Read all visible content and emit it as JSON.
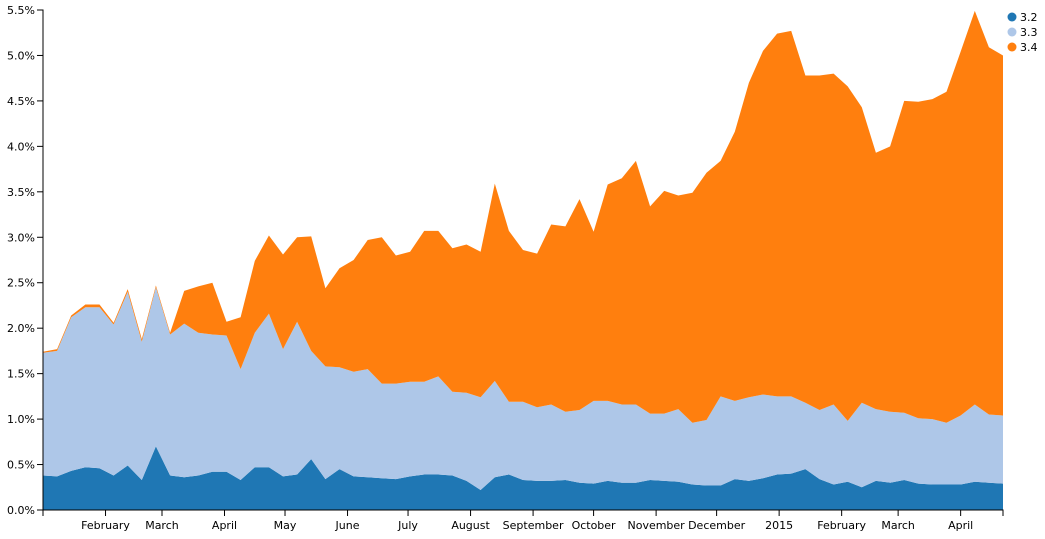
{
  "chart_data": {
    "type": "area",
    "stacked": true,
    "x_axis": {
      "type": "date",
      "domain": [
        "2014-01-01",
        "2015-04-22"
      ],
      "ticks": [
        {
          "date": "2014-02-01",
          "label": "February"
        },
        {
          "date": "2014-03-01",
          "label": "March"
        },
        {
          "date": "2014-04-01",
          "label": "April"
        },
        {
          "date": "2014-05-01",
          "label": "May"
        },
        {
          "date": "2014-06-01",
          "label": "June"
        },
        {
          "date": "2014-07-01",
          "label": "July"
        },
        {
          "date": "2014-08-01",
          "label": "August"
        },
        {
          "date": "2014-09-01",
          "label": "September"
        },
        {
          "date": "2014-10-01",
          "label": "October"
        },
        {
          "date": "2014-11-01",
          "label": "November"
        },
        {
          "date": "2014-12-01",
          "label": "December"
        },
        {
          "date": "2015-01-01",
          "label": "2015"
        },
        {
          "date": "2015-02-01",
          "label": "February"
        },
        {
          "date": "2015-03-01",
          "label": "March"
        },
        {
          "date": "2015-04-01",
          "label": "April"
        }
      ]
    },
    "y_axis": {
      "domain": [
        0,
        5.5
      ],
      "ticks": [
        {
          "value": 0,
          "label": "0.0%"
        },
        {
          "value": 0.5,
          "label": "0.5%"
        },
        {
          "value": 1,
          "label": "1.0%"
        },
        {
          "value": 1.5,
          "label": "1.5%"
        },
        {
          "value": 2,
          "label": "2.0%"
        },
        {
          "value": 2.5,
          "label": "2.5%"
        },
        {
          "value": 3,
          "label": "3.0%"
        },
        {
          "value": 3.5,
          "label": "3.5%"
        },
        {
          "value": 4,
          "label": "4.0%"
        },
        {
          "value": 4.5,
          "label": "4.5%"
        },
        {
          "value": 5,
          "label": "5.0%"
        },
        {
          "value": 5.5,
          "label": "5.5%"
        }
      ]
    },
    "legend_position": "top-right",
    "grid": false,
    "x": [
      "2014-01-01",
      "2014-01-08",
      "2014-01-15",
      "2014-01-22",
      "2014-01-29",
      "2014-02-05",
      "2014-02-12",
      "2014-02-19",
      "2014-02-26",
      "2014-03-05",
      "2014-03-12",
      "2014-03-19",
      "2014-03-26",
      "2014-04-02",
      "2014-04-09",
      "2014-04-16",
      "2014-04-23",
      "2014-04-30",
      "2014-05-07",
      "2014-05-14",
      "2014-05-21",
      "2014-05-28",
      "2014-06-04",
      "2014-06-11",
      "2014-06-18",
      "2014-06-25",
      "2014-07-02",
      "2014-07-09",
      "2014-07-16",
      "2014-07-23",
      "2014-07-30",
      "2014-08-06",
      "2014-08-13",
      "2014-08-20",
      "2014-08-27",
      "2014-09-03",
      "2014-09-10",
      "2014-09-17",
      "2014-09-24",
      "2014-10-01",
      "2014-10-08",
      "2014-10-15",
      "2014-10-22",
      "2014-10-29",
      "2014-11-05",
      "2014-11-12",
      "2014-11-19",
      "2014-11-26",
      "2014-12-03",
      "2014-12-10",
      "2014-12-17",
      "2014-12-24",
      "2014-12-31",
      "2015-01-07",
      "2015-01-14",
      "2015-01-21",
      "2015-01-28",
      "2015-02-04",
      "2015-02-11",
      "2015-02-18",
      "2015-02-25",
      "2015-03-04",
      "2015-03-11",
      "2015-03-18",
      "2015-03-25",
      "2015-04-01",
      "2015-04-08",
      "2015-04-15",
      "2015-04-22"
    ],
    "series": [
      {
        "name": "3.2",
        "color": "#1f77b4",
        "values": [
          0.38,
          0.37,
          0.43,
          0.47,
          0.46,
          0.38,
          0.49,
          0.33,
          0.7,
          0.38,
          0.36,
          0.38,
          0.42,
          0.42,
          0.33,
          0.47,
          0.47,
          0.37,
          0.39,
          0.56,
          0.34,
          0.45,
          0.37,
          0.36,
          0.35,
          0.34,
          0.37,
          0.39,
          0.39,
          0.38,
          0.32,
          0.22,
          0.36,
          0.39,
          0.33,
          0.32,
          0.32,
          0.33,
          0.3,
          0.29,
          0.32,
          0.3,
          0.3,
          0.33,
          0.32,
          0.31,
          0.28,
          0.27,
          0.27,
          0.34,
          0.32,
          0.35,
          0.39,
          0.4,
          0.45,
          0.34,
          0.28,
          0.31,
          0.25,
          0.32,
          0.3,
          0.33,
          0.29,
          0.28,
          0.28,
          0.28,
          0.31,
          0.3,
          0.29
        ]
      },
      {
        "name": "3.3",
        "color": "#aec7e8",
        "values": [
          1.35,
          1.38,
          1.69,
          1.76,
          1.77,
          1.66,
          1.91,
          1.52,
          1.75,
          1.55,
          1.69,
          1.57,
          1.51,
          1.5,
          1.22,
          1.48,
          1.69,
          1.4,
          1.68,
          1.19,
          1.24,
          1.12,
          1.15,
          1.19,
          1.04,
          1.05,
          1.04,
          1.02,
          1.08,
          0.92,
          0.97,
          1.02,
          1.06,
          0.8,
          0.86,
          0.81,
          0.84,
          0.75,
          0.8,
          0.91,
          0.88,
          0.86,
          0.86,
          0.73,
          0.74,
          0.8,
          0.68,
          0.72,
          0.98,
          0.86,
          0.92,
          0.92,
          0.86,
          0.85,
          0.73,
          0.76,
          0.88,
          0.67,
          0.93,
          0.79,
          0.78,
          0.74,
          0.72,
          0.72,
          0.68,
          0.76,
          0.85,
          0.75,
          0.75
        ]
      },
      {
        "name": "3.4",
        "color": "#ff7f0e",
        "values": [
          0.01,
          0.02,
          0.02,
          0.03,
          0.03,
          0.02,
          0.03,
          0.03,
          0.02,
          0.02,
          0.36,
          0.51,
          0.57,
          0.15,
          0.57,
          0.79,
          0.86,
          1.04,
          0.93,
          1.26,
          0.86,
          1.09,
          1.23,
          1.42,
          1.61,
          1.41,
          1.43,
          1.66,
          1.6,
          1.58,
          1.63,
          1.6,
          2.17,
          1.88,
          1.67,
          1.69,
          1.98,
          2.04,
          2.32,
          1.86,
          2.38,
          2.49,
          2.68,
          2.28,
          2.45,
          2.35,
          2.53,
          2.72,
          2.59,
          2.96,
          3.46,
          3.78,
          3.99,
          4.02,
          3.6,
          3.68,
          3.64,
          3.68,
          3.25,
          2.82,
          2.92,
          3.43,
          3.48,
          3.52,
          3.64,
          4.0,
          4.33,
          4.04,
          3.96
        ]
      }
    ]
  }
}
